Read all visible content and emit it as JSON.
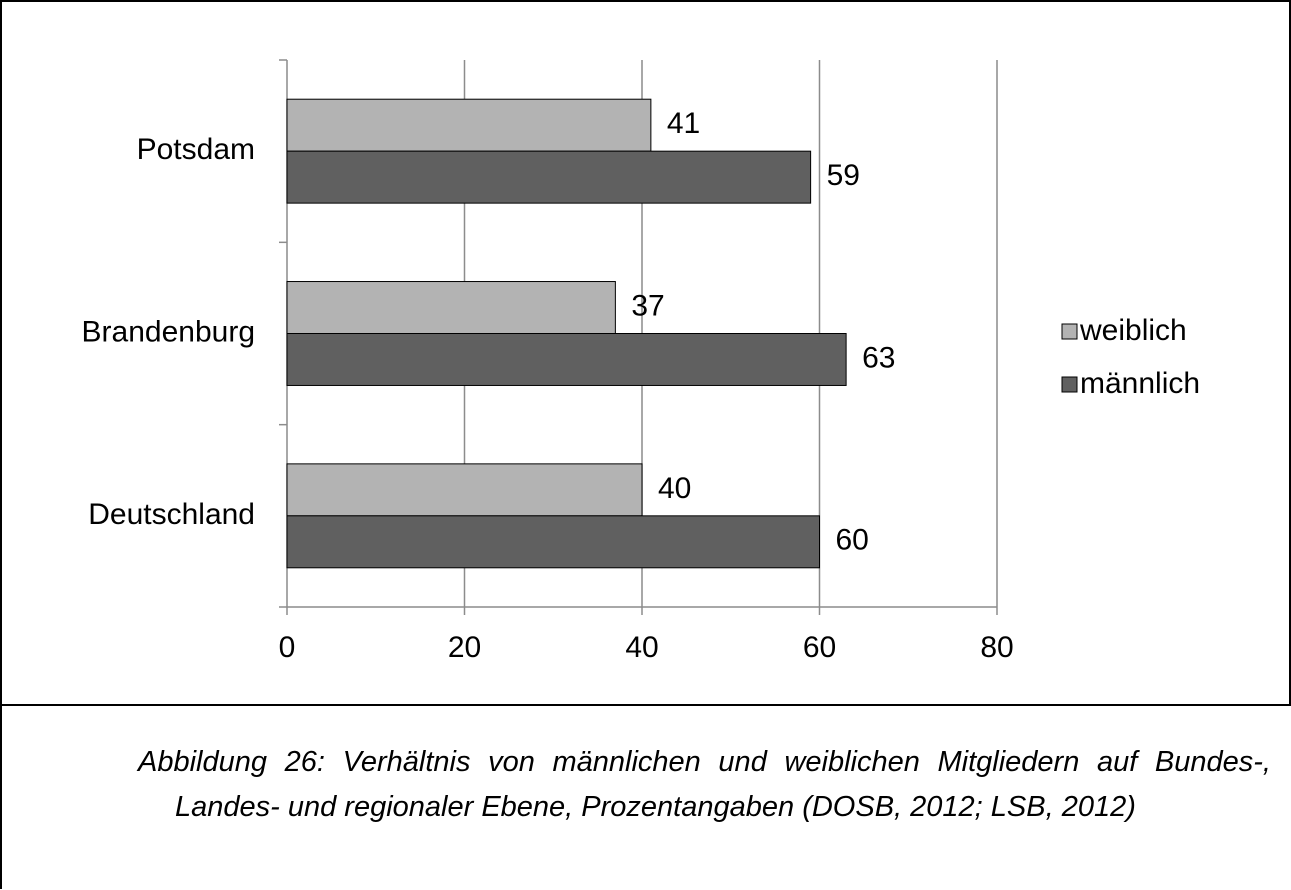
{
  "chart_data": {
    "type": "hbar",
    "categories": [
      "Potsdam",
      "Brandenburg",
      "Deutschland"
    ],
    "series": [
      {
        "name": "weiblich",
        "color": "#b3b3b3",
        "values": [
          41,
          37,
          40
        ]
      },
      {
        "name": "männlich",
        "color": "#606060",
        "values": [
          59,
          63,
          60
        ]
      }
    ],
    "xlim": [
      0,
      80
    ],
    "xticks": [
      0,
      20,
      40,
      60,
      80
    ],
    "grid": true,
    "legend": "right",
    "caption": "Abbildung 26: Verhältnis von männlichen und weiblichen Mitgliedern auf Bundes-, Landes- und regionaler Ebene, Prozentangaben (DOSB, 2012; LSB, 2012)"
  }
}
